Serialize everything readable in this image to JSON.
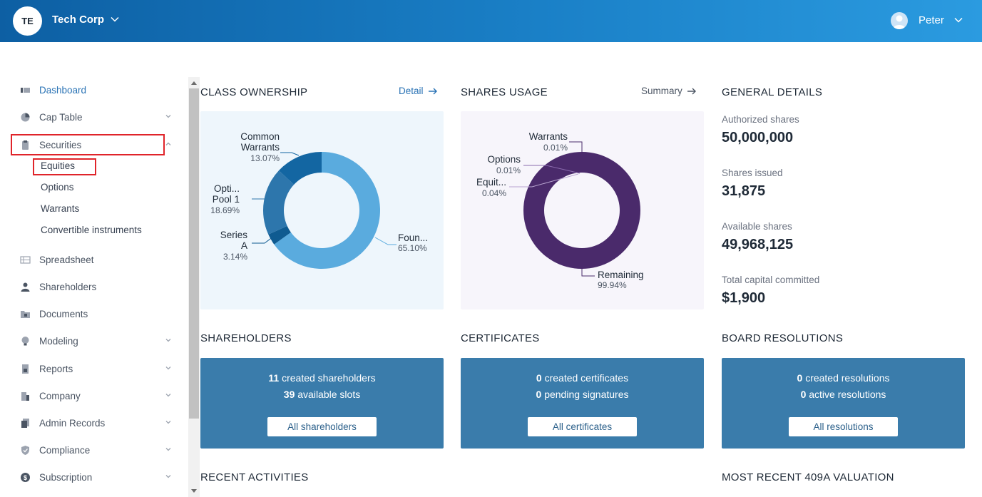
{
  "header": {
    "logo_initials": "TE",
    "company_name": "Tech Corp",
    "user_name": "Peter"
  },
  "sidebar": {
    "items": [
      {
        "label": "Dashboard"
      },
      {
        "label": "Cap Table"
      },
      {
        "label": "Securities"
      },
      {
        "label": "Spreadsheet"
      },
      {
        "label": "Shareholders"
      },
      {
        "label": "Documents"
      },
      {
        "label": "Modeling"
      },
      {
        "label": "Reports"
      },
      {
        "label": "Company"
      },
      {
        "label": "Admin Records"
      },
      {
        "label": "Compliance"
      },
      {
        "label": "Subscription"
      }
    ],
    "securities_sub": [
      "Equities",
      "Options",
      "Warrants",
      "Convertible instruments"
    ]
  },
  "class_ownership": {
    "title": "CLASS OWNERSHIP",
    "link": "Detail",
    "chart_data": {
      "type": "pie",
      "slices": [
        {
          "line1": "Foun...",
          "line2": "",
          "pct": "65.10%",
          "value": 65.1,
          "color": "#5aabde"
        },
        {
          "line1": "Series",
          "line2": "A",
          "pct": "3.14%",
          "value": 3.14,
          "color": "#0f5b91"
        },
        {
          "line1": "Opti...",
          "line2": "Pool 1",
          "pct": "18.69%",
          "value": 18.69,
          "color": "#2d76ac"
        },
        {
          "line1": "Common",
          "line2": "Warrants",
          "pct": "13.07%",
          "value": 13.07,
          "color": "#1366a2"
        }
      ]
    }
  },
  "shares_usage": {
    "title": "SHARES USAGE",
    "link": "Summary",
    "chart_data": {
      "type": "pie",
      "slices": [
        {
          "label": "Remaining",
          "pct": "99.94%",
          "value": 99.94,
          "color": "#4a2a6b"
        },
        {
          "label": "Equit...",
          "pct": "0.04%",
          "value": 0.04,
          "color": "#6b4a8e"
        },
        {
          "label": "Options",
          "pct": "0.01%",
          "value": 0.01,
          "color": "#8a6aad"
        },
        {
          "label": "Warrants",
          "pct": "0.01%",
          "value": 0.01,
          "color": "#b8a4d0"
        }
      ]
    }
  },
  "general_details": {
    "title": "GENERAL DETAILS",
    "items": [
      {
        "label": "Authorized shares",
        "value": "50,000,000"
      },
      {
        "label": "Shares issued",
        "value": "31,875"
      },
      {
        "label": "Available shares",
        "value": "49,968,125"
      },
      {
        "label": "Total capital committed",
        "value": "$1,900"
      }
    ]
  },
  "shareholders": {
    "title": "SHAREHOLDERS",
    "line1_num": "11",
    "line1_text": "created shareholders",
    "line2_num": "39",
    "line2_text": "available slots",
    "button": "All shareholders"
  },
  "certificates": {
    "title": "CERTIFICATES",
    "line1_num": "0",
    "line1_text": "created certificates",
    "line2_num": "0",
    "line2_text": "pending signatures",
    "button": "All certificates"
  },
  "board_resolutions": {
    "title": "BOARD RESOLUTIONS",
    "line1_num": "0",
    "line1_text": "created resolutions",
    "line2_num": "0",
    "line2_text": "active resolutions",
    "button": "All resolutions"
  },
  "recent_activities": {
    "title": "RECENT ACTIVITIES"
  },
  "valuation": {
    "title": "MOST RECENT 409A VALUATION"
  }
}
